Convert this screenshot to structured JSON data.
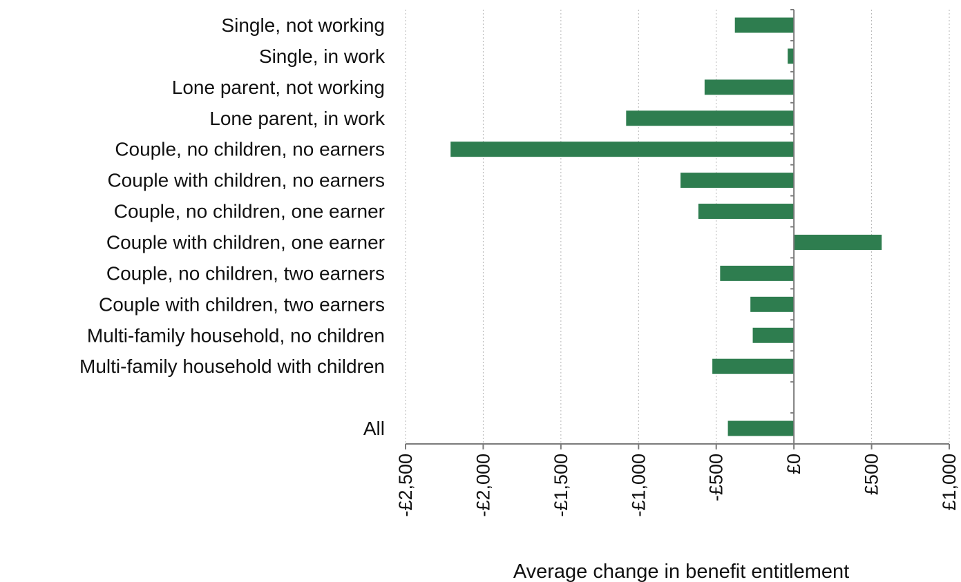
{
  "chart_data": {
    "type": "bar",
    "orientation": "horizontal",
    "xlabel": "Average change in benefit entitlement",
    "xlim": [
      -2500,
      1000
    ],
    "x_ticks": [
      -2500,
      -2000,
      -1500,
      -1000,
      -500,
      0,
      500,
      1000
    ],
    "x_tick_labels": [
      "-£2,500",
      "-£2,000",
      "-£1,500",
      "-£1,000",
      "-£500",
      "£0",
      "£500",
      "£1,000"
    ],
    "grid": "vertical dotted",
    "bar_color": "#2e7d4f",
    "categories": [
      "Single, not working",
      "Single, in work",
      "Lone parent, not working",
      "Lone parent, in work",
      "Couple, no children, no earners",
      "Couple with children, no earners",
      "Couple, no children, one earner",
      "Couple with children, one earner",
      "Couple, no children, two earners",
      "Couple with children, two earners",
      "Multi-family household, no children",
      "Multi-family household with children",
      "",
      "All"
    ],
    "values": [
      -380,
      -40,
      -575,
      -1080,
      -2210,
      -730,
      -615,
      565,
      -475,
      -280,
      -265,
      -525,
      null,
      -425
    ]
  }
}
